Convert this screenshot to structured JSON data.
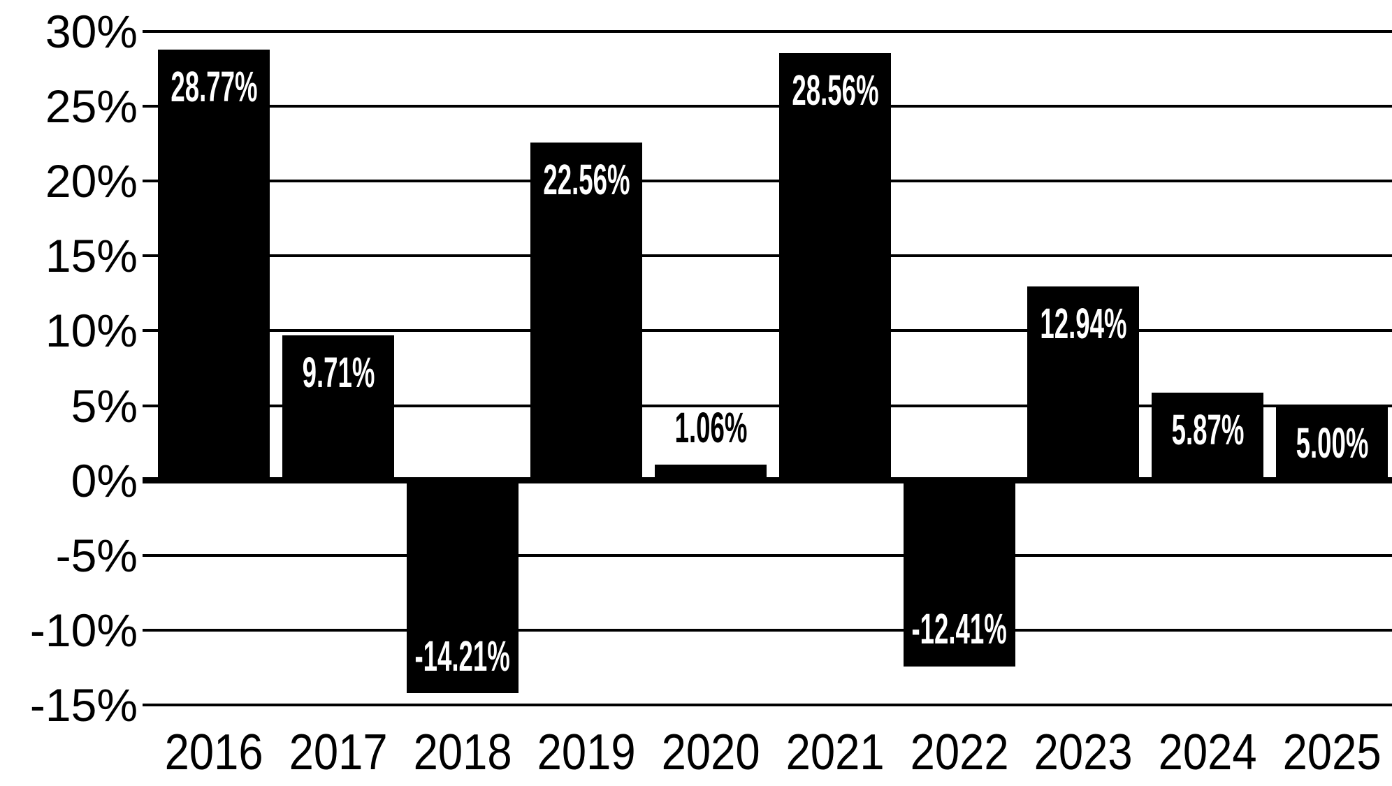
{
  "chart_data": {
    "type": "bar",
    "title": "",
    "xlabel": "",
    "ylabel": "",
    "categories": [
      "2016",
      "2017",
      "2018",
      "2019",
      "2020",
      "2021",
      "2022",
      "2023",
      "2024",
      "2025"
    ],
    "values": [
      28.77,
      9.71,
      -14.21,
      22.56,
      1.06,
      28.56,
      -12.41,
      12.94,
      5.87,
      5.0
    ],
    "value_labels": [
      "28.77%",
      "9.71%",
      "-14.21%",
      "22.56%",
      "1.06%",
      "28.56%",
      "-12.41%",
      "12.94%",
      "5.87%",
      "5.00%"
    ],
    "ylim": [
      -15,
      30
    ],
    "ytick_step": 5,
    "ytick_labels": [
      "30%",
      "25%",
      "20%",
      "15%",
      "10%",
      "5%",
      "0%",
      "-5%",
      "-10%",
      "-15%"
    ],
    "grid": "horizontal",
    "legend": "none",
    "label_placement_rule": "inside-near-extreme; outside-above when bar too short (2020)",
    "colors": {
      "bar": "#000000",
      "background": "#ffffff",
      "gridline": "#000000",
      "axis_text": "#000000",
      "label_inside": "#ffffff",
      "label_outside": "#000000"
    }
  }
}
